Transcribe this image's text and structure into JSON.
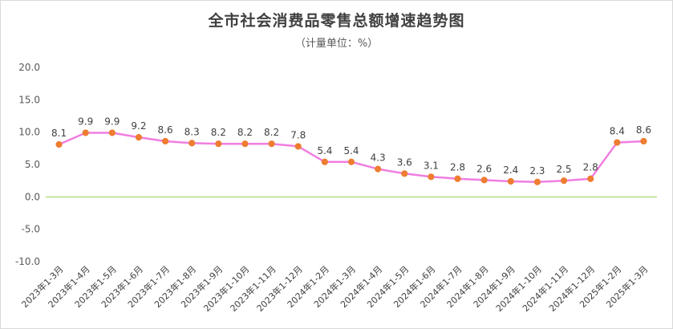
{
  "chart_data": {
    "type": "line",
    "title": "全市社会消费品零售总额增速趋势图",
    "subtitle": "（计量单位：%）",
    "xlabel": "",
    "ylabel": "",
    "ylim": [
      -10,
      20
    ],
    "yticks": [
      "20.0",
      "15.0",
      "10.0",
      "5.0",
      "0.0",
      "-5.0",
      "-10.0"
    ],
    "grid": false,
    "legend": "none",
    "categories": [
      "2023年1-3月",
      "2023年1-4月",
      "2023年1-5月",
      "2023年1-6月",
      "2023年1-7月",
      "2023年1-8月",
      "2023年1-9月",
      "2023年1-10月",
      "2023年1-11月",
      "2023年1-12月",
      "2024年1-2月",
      "2024年1-3月",
      "2024年1-4月",
      "2024年1-5月",
      "2024年1-6月",
      "2024年1-7月",
      "2024年1-8月",
      "2024年1-9月",
      "2024年1-10月",
      "2024年1-11月",
      "2024年1-12月",
      "2025年1-2月",
      "2025年1-3月"
    ],
    "series": [
      {
        "values": [
          8.1,
          9.9,
          9.9,
          9.2,
          8.6,
          8.3,
          8.2,
          8.2,
          8.2,
          7.8,
          5.4,
          5.4,
          4.3,
          3.6,
          3.1,
          2.8,
          2.6,
          2.4,
          2.3,
          2.5,
          2.8,
          8.4,
          8.6
        ],
        "labels": [
          "8.1",
          "9.9",
          "9.9",
          "9.2",
          "8.6",
          "8.3",
          "8.2",
          "8.2",
          "8.2",
          "7.8",
          "5.4",
          "5.4",
          "4.3",
          "3.6",
          "3.1",
          "2.8",
          "2.6",
          "2.4",
          "2.3",
          "2.5",
          "2.8",
          "8.4",
          "8.6"
        ]
      }
    ],
    "colors": {
      "line": "#f07ee0",
      "marker": "#ed7d31",
      "zero_line": "#92d050"
    }
  }
}
